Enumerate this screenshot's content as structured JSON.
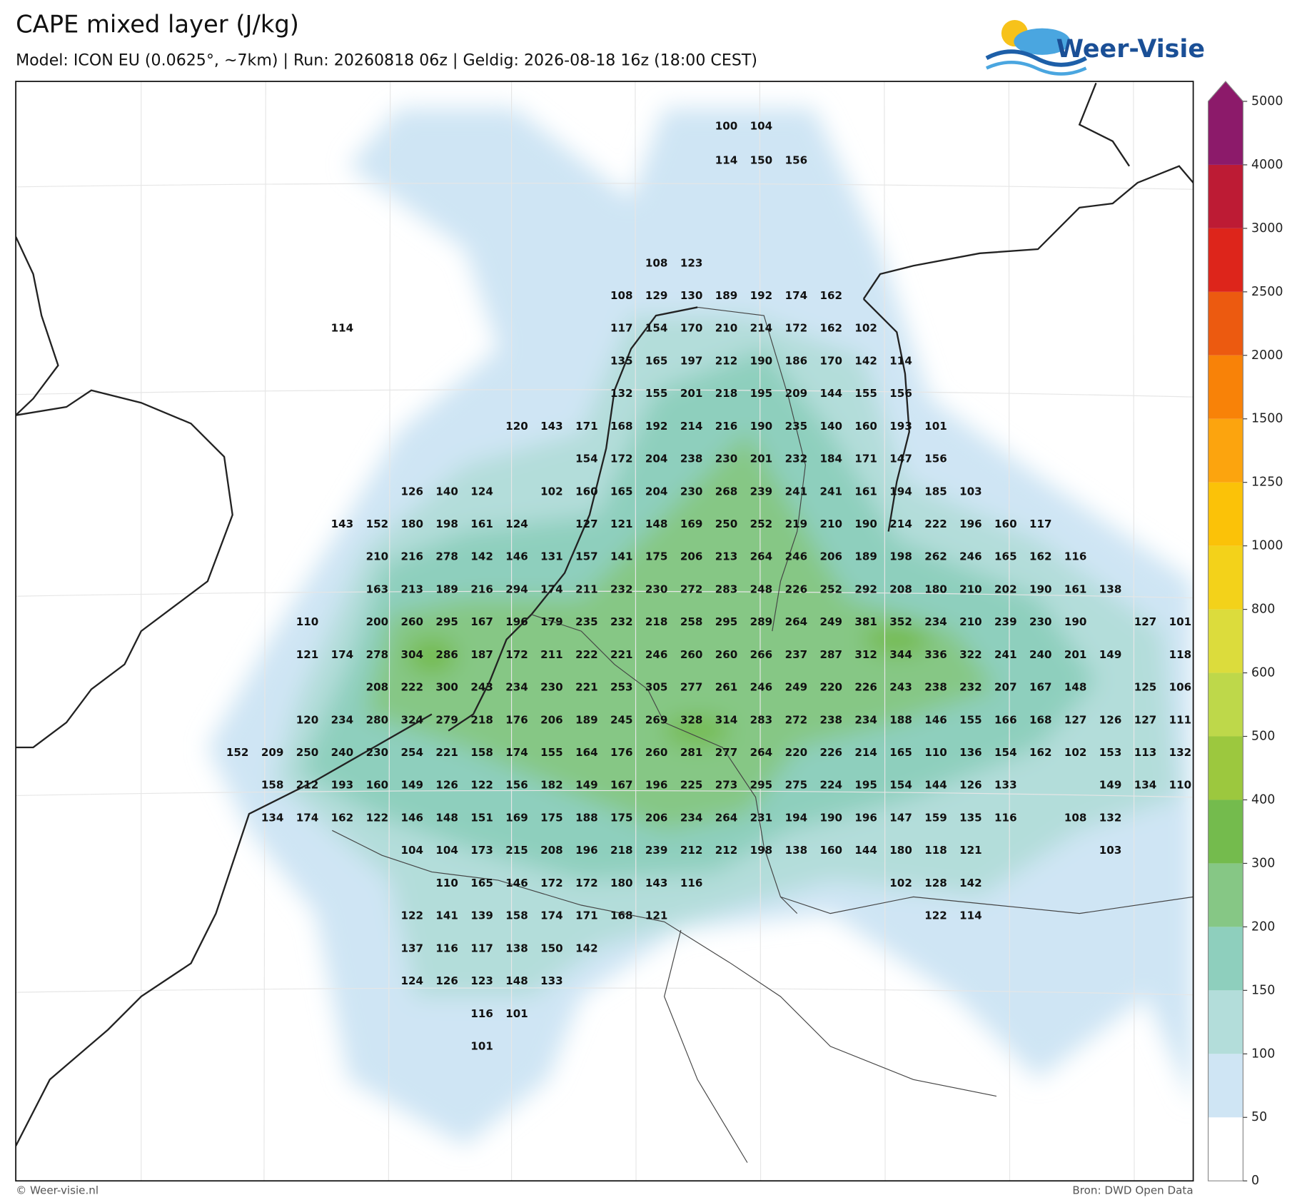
{
  "header": {
    "title": "CAPE mixed layer (J/kg)",
    "subtitle": "Model: ICON EU (0.0625°, ~7km)  |  Run: 20260818 06z  |  Geldig: 2026-08-18 16z (18:00 CEST)"
  },
  "logo": {
    "text": "Weer-Visie"
  },
  "colorbar": {
    "levels": [
      0,
      50,
      100,
      150,
      200,
      300,
      400,
      500,
      600,
      800,
      1000,
      1250,
      1500,
      2000,
      2500,
      3000,
      4000,
      5000
    ],
    "colors": [
      "#ffffff",
      "#cfe5f4",
      "#b3ddda",
      "#8ecfbd",
      "#86c785",
      "#74bb4d",
      "#9cc83e",
      "#bed84a",
      "#dcdc3c",
      "#f3d21a",
      "#fbc208",
      "#fca40e",
      "#f88208",
      "#ec5a10",
      "#dd251b",
      "#bd1b34",
      "#8c1a6a"
    ]
  },
  "map": {
    "rows": [
      [
        null,
        null,
        null,
        null,
        null,
        null,
        null,
        null,
        null,
        null,
        null,
        null,
        null,
        null,
        100,
        104
      ],
      [
        null,
        null,
        null,
        null,
        null,
        null,
        null,
        null,
        null,
        null,
        null,
        null,
        null,
        null,
        114,
        150,
        156
      ],
      [],
      [],
      [
        null,
        null,
        null,
        null,
        null,
        null,
        null,
        null,
        null,
        null,
        null,
        null,
        108,
        123
      ],
      [
        null,
        null,
        null,
        null,
        null,
        null,
        null,
        null,
        null,
        null,
        null,
        108,
        129,
        130,
        189,
        192,
        174,
        162
      ],
      [
        null,
        null,
        null,
        114,
        null,
        null,
        null,
        null,
        null,
        null,
        null,
        117,
        154,
        170,
        210,
        214,
        172,
        162,
        102
      ],
      [
        null,
        null,
        null,
        null,
        null,
        null,
        null,
        null,
        null,
        null,
        null,
        135,
        165,
        197,
        212,
        190,
        186,
        170,
        142,
        114
      ],
      [
        null,
        null,
        null,
        null,
        null,
        null,
        null,
        null,
        null,
        null,
        null,
        132,
        155,
        201,
        218,
        195,
        209,
        144,
        155,
        156
      ],
      [
        null,
        null,
        null,
        null,
        null,
        null,
        null,
        null,
        120,
        143,
        171,
        168,
        192,
        214,
        216,
        190,
        235,
        140,
        160,
        193,
        101
      ],
      [
        null,
        null,
        null,
        null,
        null,
        null,
        null,
        null,
        null,
        null,
        154,
        172,
        204,
        238,
        230,
        201,
        232,
        184,
        171,
        147,
        156
      ],
      [
        null,
        null,
        null,
        null,
        null,
        126,
        140,
        124,
        null,
        102,
        160,
        165,
        204,
        230,
        268,
        239,
        241,
        241,
        161,
        194,
        185,
        103
      ],
      [
        null,
        null,
        null,
        143,
        152,
        180,
        198,
        161,
        124,
        null,
        127,
        121,
        148,
        169,
        250,
        252,
        219,
        210,
        190,
        214,
        222,
        196,
        160,
        117
      ],
      [
        null,
        null,
        null,
        null,
        210,
        216,
        278,
        142,
        146,
        131,
        157,
        141,
        175,
        206,
        213,
        264,
        246,
        206,
        189,
        198,
        262,
        246,
        165,
        162,
        116
      ],
      [
        null,
        null,
        null,
        null,
        163,
        213,
        189,
        216,
        294,
        174,
        211,
        232,
        230,
        272,
        283,
        248,
        226,
        252,
        292,
        208,
        180,
        210,
        202,
        190,
        161,
        138
      ],
      [
        null,
        null,
        110,
        null,
        200,
        260,
        295,
        167,
        196,
        179,
        235,
        232,
        218,
        258,
        295,
        289,
        264,
        249,
        381,
        352,
        234,
        210,
        239,
        230,
        190,
        null,
        127,
        101
      ],
      [
        null,
        null,
        121,
        174,
        278,
        304,
        286,
        187,
        172,
        211,
        222,
        221,
        246,
        260,
        260,
        266,
        237,
        287,
        312,
        344,
        336,
        322,
        241,
        240,
        201,
        149,
        null,
        118
      ],
      [
        null,
        null,
        null,
        null,
        208,
        222,
        300,
        243,
        234,
        230,
        221,
        253,
        305,
        277,
        261,
        246,
        249,
        220,
        226,
        243,
        238,
        232,
        207,
        167,
        148,
        null,
        125,
        106
      ],
      [
        null,
        null,
        120,
        234,
        280,
        324,
        279,
        218,
        176,
        206,
        189,
        245,
        269,
        328,
        314,
        283,
        272,
        238,
        234,
        188,
        146,
        155,
        166,
        168,
        127,
        126,
        127,
        111
      ],
      [
        152,
        209,
        250,
        240,
        230,
        254,
        221,
        158,
        174,
        155,
        164,
        176,
        260,
        281,
        277,
        264,
        220,
        226,
        214,
        165,
        110,
        136,
        154,
        162,
        102,
        153,
        113,
        132
      ],
      [
        null,
        158,
        212,
        193,
        160,
        149,
        126,
        122,
        156,
        182,
        149,
        167,
        196,
        225,
        273,
        295,
        275,
        224,
        195,
        154,
        144,
        126,
        133,
        null,
        null,
        149,
        134,
        110
      ],
      [
        null,
        134,
        174,
        162,
        122,
        146,
        148,
        151,
        169,
        175,
        188,
        175,
        206,
        234,
        264,
        231,
        194,
        190,
        196,
        147,
        159,
        135,
        116,
        null,
        108,
        132
      ],
      [
        null,
        null,
        null,
        null,
        null,
        104,
        104,
        173,
        215,
        208,
        196,
        218,
        239,
        212,
        212,
        198,
        138,
        160,
        144,
        180,
        118,
        121,
        null,
        null,
        null,
        103
      ],
      [
        null,
        null,
        null,
        null,
        null,
        null,
        110,
        165,
        146,
        172,
        172,
        180,
        143,
        116,
        null,
        null,
        null,
        null,
        null,
        102,
        128,
        142
      ],
      [
        null,
        null,
        null,
        null,
        null,
        122,
        141,
        139,
        158,
        174,
        171,
        168,
        121,
        null,
        null,
        null,
        null,
        null,
        null,
        null,
        122,
        114
      ],
      [
        null,
        null,
        null,
        null,
        null,
        137,
        116,
        117,
        138,
        150,
        142
      ],
      [
        null,
        null,
        null,
        null,
        null,
        124,
        126,
        123,
        148,
        133
      ],
      [
        null,
        null,
        null,
        null,
        null,
        null,
        null,
        116,
        101
      ],
      [
        null,
        null,
        null,
        null,
        null,
        null,
        null,
        101
      ]
    ]
  },
  "footer": {
    "left": "© Weer-visie.nl",
    "right": "Bron: DWD Open Data"
  }
}
